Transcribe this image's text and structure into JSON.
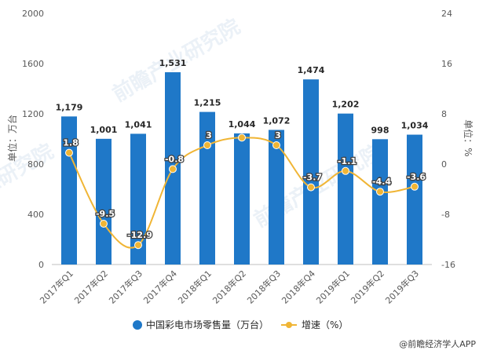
{
  "chart_data": {
    "type": "bar",
    "categories": [
      "2017年Q1",
      "2017年Q2",
      "2017年Q3",
      "2017年Q4",
      "2018年Q1",
      "2018年Q2",
      "2018年Q3",
      "2018年Q4",
      "2019年Q1",
      "2019年Q2",
      "2019年Q3"
    ],
    "series": [
      {
        "name": "中国彩电市场零售量（万台）",
        "type": "bar",
        "axis": "left",
        "values": [
          1179,
          1001,
          1041,
          1531,
          1215,
          1044,
          1072,
          1474,
          1202,
          998,
          1034
        ],
        "labels": [
          "1,179",
          "1,001",
          "1,041",
          "1,531",
          "1,215",
          "1,044",
          "1,072",
          "1,474",
          "1,202",
          "998",
          "1,034"
        ],
        "color": "#1f78c8"
      },
      {
        "name": "增速（%）",
        "type": "line",
        "axis": "right",
        "values": [
          1.8,
          -9.5,
          -12.9,
          -0.8,
          3,
          4.2,
          3,
          -3.7,
          -1.1,
          -4.4,
          -3.6
        ],
        "labels": [
          "1.8",
          "-9.5",
          "-12.9",
          "-0.8",
          "3",
          "",
          "3",
          "-3.7",
          "-1.1",
          "-4.4",
          "-3.6"
        ],
        "color": "#f0b535"
      }
    ],
    "ylabel": "单位：万台",
    "y2label": "单位：%",
    "ylim": [
      0,
      2000
    ],
    "yticks": [
      "0",
      "400",
      "800",
      "1200",
      "1600",
      "2000"
    ],
    "y2lim": [
      -16,
      24
    ],
    "y2ticks": [
      "-16",
      "-8",
      "0",
      "8",
      "16",
      "24"
    ],
    "legend_position": "bottom",
    "grid": false
  },
  "source": "@前瞻经济学人APP",
  "watermarks": [
    "前瞻产业研究院",
    "前瞻产业研究院",
    "业研究院"
  ]
}
